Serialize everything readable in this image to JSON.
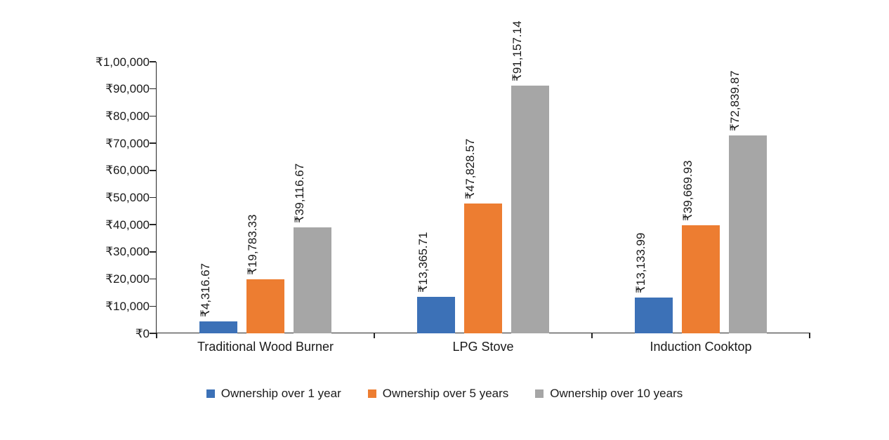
{
  "chart_data": {
    "type": "bar",
    "title": "",
    "xlabel": "",
    "ylabel": "",
    "categories": [
      "Traditional Wood Burner",
      "LPG Stove",
      "Induction Cooktop"
    ],
    "series": [
      {
        "name": "Ownership over 1 year",
        "color": "#3C71B7",
        "values": [
          4316.67,
          13365.71,
          13133.99
        ],
        "labels": [
          "₹4,316.67",
          "₹13,365.71",
          "₹13,133.99"
        ]
      },
      {
        "name": "Ownership over 5 years",
        "color": "#ED7D31",
        "values": [
          19783.33,
          47828.57,
          39669.93
        ],
        "labels": [
          "₹19,783.33",
          "₹47,828.57",
          "₹39,669.93"
        ]
      },
      {
        "name": "Ownership over 10 years",
        "color": "#A6A6A6",
        "values": [
          39116.67,
          91157.14,
          72839.87
        ],
        "labels": [
          "₹39,116.67",
          "₹91,157.14",
          "₹72,839.87"
        ]
      }
    ],
    "y_axis": {
      "min": 0,
      "max": 100000,
      "step": 10000,
      "tick_labels": [
        "₹0",
        "₹10,000",
        "₹20,000",
        "₹30,000",
        "₹40,000",
        "₹50,000",
        "₹60,000",
        "₹70,000",
        "₹80,000",
        "₹90,000",
        "₹1,00,000"
      ]
    },
    "grid": false,
    "legend_position": "bottom",
    "bar_label_rotation": -90,
    "colors": {
      "axis": "#262626",
      "text": "#1A1A1A",
      "background": "#FFFFFF"
    }
  }
}
